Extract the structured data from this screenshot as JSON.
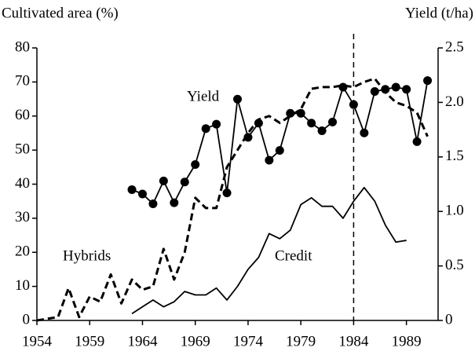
{
  "chart_data": {
    "type": "line",
    "y_label": "Cultivated area (%)",
    "y2_label": "Yield (t/ha)",
    "xlim": [
      1954,
      1992
    ],
    "xticks": [
      1954,
      1959,
      1964,
      1969,
      1974,
      1979,
      1984,
      1989
    ],
    "ylim": [
      0,
      80
    ],
    "yticks": [
      0,
      10,
      20,
      30,
      40,
      50,
      60,
      70,
      80
    ],
    "y2lim": [
      0,
      2.5
    ],
    "y2ticks": [
      {
        "value": 0,
        "label": "0"
      },
      {
        "value": 0.5,
        "label": "0.5"
      },
      {
        "value": 1,
        "label": "1.0"
      },
      {
        "value": 1.5,
        "label": "1.5"
      },
      {
        "value": 2,
        "label": "2.0"
      },
      {
        "value": 2.5,
        "label": "2.5"
      }
    ],
    "vline": 1984,
    "series": [
      {
        "name": "Hybrids",
        "color": "#000",
        "style": "dashed",
        "axis": "y",
        "x": [
          1954,
          1955,
          1956,
          1957,
          1958,
          1959,
          1960,
          1961,
          1962,
          1963,
          1964,
          1965,
          1966,
          1967,
          1968,
          1969,
          1970,
          1971,
          1972,
          1973,
          1974,
          1975,
          1976,
          1977,
          1978,
          1979,
          1980,
          1981,
          1982,
          1983,
          1984,
          1985,
          1986,
          1987,
          1988,
          1989,
          1990,
          1991
        ],
        "values": [
          0,
          0.5,
          1,
          9.5,
          1,
          7,
          5.5,
          13.5,
          5,
          12,
          9,
          10,
          21,
          12,
          20,
          36,
          33,
          33,
          45,
          50,
          55,
          59,
          60,
          58,
          60,
          62,
          68,
          68.5,
          68.5,
          69,
          68.5,
          70,
          71,
          67,
          64,
          63,
          61,
          54
        ]
      },
      {
        "name": "Yield",
        "color": "#000",
        "style": "solid",
        "marker": "circle",
        "axis": "y2",
        "x": [
          1963,
          1964,
          1965,
          1966,
          1967,
          1968,
          1969,
          1970,
          1971,
          1972,
          1973,
          1974,
          1975,
          1976,
          1977,
          1978,
          1979,
          1980,
          1981,
          1982,
          1983,
          1984,
          1985,
          1986,
          1987,
          1988,
          1989,
          1990,
          1991
        ],
        "values": [
          1.2,
          1.16,
          1.07,
          1.28,
          1.08,
          1.27,
          1.43,
          1.76,
          1.8,
          1.17,
          2.03,
          1.68,
          1.81,
          1.47,
          1.56,
          1.9,
          1.9,
          1.81,
          1.74,
          1.82,
          2.14,
          1.98,
          1.72,
          2.1,
          2.12,
          2.14,
          2.12,
          1.64,
          2.2
        ]
      },
      {
        "name": "Credit",
        "color": "#000",
        "style": "solid",
        "axis": "y",
        "x": [
          1963,
          1964,
          1965,
          1966,
          1967,
          1968,
          1969,
          1970,
          1971,
          1972,
          1973,
          1974,
          1975,
          1976,
          1977,
          1978,
          1979,
          1980,
          1981,
          1982,
          1983,
          1984,
          1985,
          1986,
          1987,
          1988,
          1989
        ],
        "values": [
          2,
          4,
          6,
          4,
          5.5,
          8.5,
          7.5,
          7.5,
          9.5,
          6,
          10,
          15,
          18.5,
          25.5,
          24,
          26.5,
          34,
          36,
          33.5,
          33.5,
          30,
          35,
          39,
          35,
          28,
          23,
          23.5
        ]
      }
    ]
  }
}
